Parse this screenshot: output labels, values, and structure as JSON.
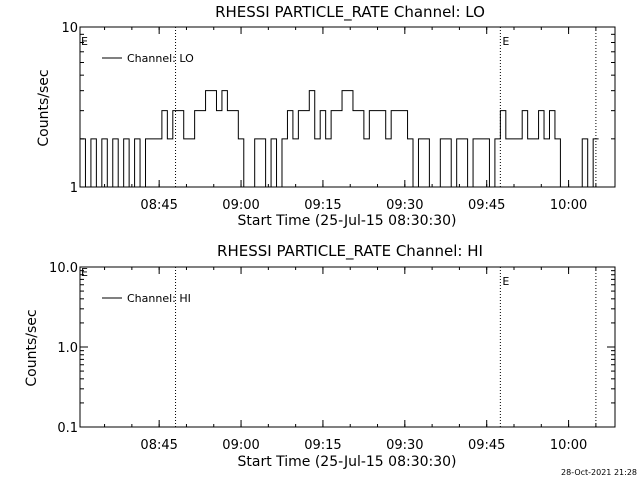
{
  "footer": {
    "timestamp": "28-Oct-2021 21:28"
  },
  "chart_data": [
    {
      "type": "line",
      "title": "RHESSI PARTICLE_RATE Channel: LO",
      "xlabel": "Start Time (25-Jul-15 08:30:30)",
      "ylabel": "Counts/sec",
      "yscale": "log",
      "ylim": [
        1,
        10
      ],
      "yticks": [
        {
          "value": 1,
          "label": "1"
        },
        {
          "value": 10,
          "label": "10"
        }
      ],
      "xlim": [
        "08:30:30",
        "10:08:30"
      ],
      "xticks": [
        "08:45",
        "09:00",
        "09:15",
        "09:30",
        "09:45",
        "10:00"
      ],
      "markers": [
        {
          "x": "08:48:00",
          "label": ""
        },
        {
          "x": "09:47:30",
          "label": "E"
        },
        {
          "x": "10:05:00",
          "label": ""
        }
      ],
      "edge_label": "E",
      "legend": {
        "label": "Channel: LO",
        "position": "top-left"
      },
      "series": [
        {
          "name": "Channel: LO",
          "x": [
            "08:30:30",
            "08:31:30",
            "08:32:30",
            "08:33:30",
            "08:34:30",
            "08:35:30",
            "08:36:30",
            "08:37:30",
            "08:38:30",
            "08:39:30",
            "08:40:30",
            "08:41:30",
            "08:42:30",
            "08:43:30",
            "08:44:30",
            "08:45:30",
            "08:46:30",
            "08:47:30",
            "08:48:30",
            "08:49:30",
            "08:50:30",
            "08:51:30",
            "08:52:30",
            "08:53:30",
            "08:54:30",
            "08:55:30",
            "08:56:30",
            "08:57:30",
            "08:58:30",
            "08:59:30",
            "09:00:30",
            "09:01:30",
            "09:02:30",
            "09:03:30",
            "09:04:30",
            "09:05:30",
            "09:06:30",
            "09:07:30",
            "09:08:30",
            "09:09:30",
            "09:10:30",
            "09:11:30",
            "09:12:30",
            "09:13:30",
            "09:14:30",
            "09:15:30",
            "09:16:30",
            "09:17:30",
            "09:18:30",
            "09:19:30",
            "09:20:30",
            "09:21:30",
            "09:22:30",
            "09:23:30",
            "09:24:30",
            "09:25:30",
            "09:26:30",
            "09:27:30",
            "09:28:30",
            "09:29:30",
            "09:30:30",
            "09:31:30",
            "09:32:30",
            "09:33:30",
            "09:34:30",
            "09:35:30",
            "09:36:30",
            "09:37:30",
            "09:38:30",
            "09:39:30",
            "09:40:30",
            "09:41:30",
            "09:42:30",
            "09:43:30",
            "09:44:30",
            "09:45:30",
            "09:46:30",
            "09:47:30",
            "09:48:30",
            "09:49:30",
            "09:50:30",
            "09:51:30",
            "09:52:30",
            "09:53:30",
            "09:54:30",
            "09:55:30",
            "09:56:30",
            "09:57:30",
            "09:58:30",
            "09:59:30",
            "10:00:30",
            "10:01:30",
            "10:02:30",
            "10:03:30",
            "10:04:30",
            "10:05:30"
          ],
          "values": [
            2,
            1,
            2,
            1,
            2,
            1,
            2,
            1,
            2,
            1,
            2,
            1,
            2,
            2,
            2,
            3,
            2,
            3,
            3,
            2,
            2,
            3,
            3,
            4,
            4,
            3,
            4,
            3,
            3,
            2,
            1,
            1,
            2,
            2,
            1,
            2,
            1,
            2,
            3,
            2,
            3,
            3,
            4,
            2,
            3,
            2,
            3,
            3,
            4,
            4,
            3,
            3,
            2,
            3,
            3,
            3,
            2,
            3,
            3,
            3,
            2,
            1,
            2,
            2,
            1,
            1,
            2,
            2,
            1,
            2,
            2,
            1,
            2,
            2,
            2,
            1,
            2,
            3,
            2,
            2,
            2,
            3,
            2,
            2,
            3,
            2,
            3,
            2,
            1,
            1,
            1,
            1,
            2,
            1,
            2,
            2
          ]
        }
      ]
    },
    {
      "type": "line",
      "title": "RHESSI PARTICLE_RATE Channel: HI",
      "xlabel": "Start Time (25-Jul-15 08:30:30)",
      "ylabel": "Counts/sec",
      "yscale": "log",
      "ylim": [
        0.1,
        10
      ],
      "yticks": [
        {
          "value": 0.1,
          "label": "0.1"
        },
        {
          "value": 1,
          "label": "1.0"
        },
        {
          "value": 10,
          "label": "10.0"
        }
      ],
      "xlim": [
        "08:30:30",
        "10:08:30"
      ],
      "xticks": [
        "08:45",
        "09:00",
        "09:15",
        "09:30",
        "09:45",
        "10:00"
      ],
      "markers": [
        {
          "x": "08:48:00",
          "label": ""
        },
        {
          "x": "09:47:30",
          "label": "E"
        },
        {
          "x": "10:05:00",
          "label": ""
        }
      ],
      "edge_label": "E",
      "legend": {
        "label": "Channel: HI",
        "position": "top-left"
      },
      "series": [
        {
          "name": "Channel: HI",
          "x": [],
          "values": []
        }
      ]
    }
  ]
}
